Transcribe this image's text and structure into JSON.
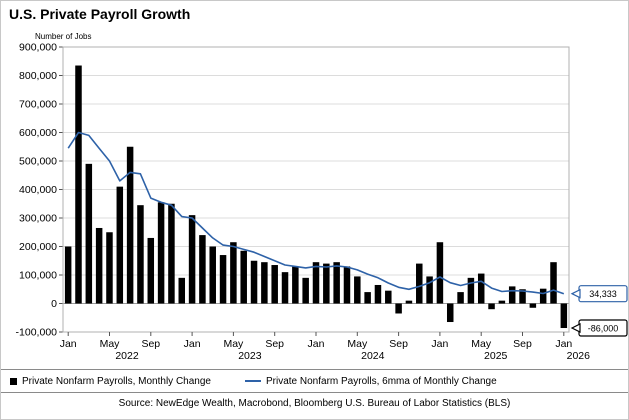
{
  "title": "U.S. Private Payroll Growth",
  "source": "Source: NewEdge Wealth, Macrobond, Bloomberg U.S. Bureau of Labor Statistics (BLS)",
  "colors": {
    "bar": "#000000",
    "line": "#2e62a8",
    "grid": "#dcdcdc",
    "axis": "#8a8a8a"
  },
  "legend": [
    {
      "label": "Private Nonfarm Payrolls, Monthly Change",
      "marker": "square",
      "color": "#000000"
    },
    {
      "label": "Private Nonfarm Payrolls, 6mma of Monthly Change",
      "marker": "line",
      "color": "#2e62a8"
    }
  ],
  "callouts": [
    {
      "text": "34,333",
      "value": 34333,
      "color": "#2e62a8"
    },
    {
      "text": "-86,000",
      "value": -86000,
      "color": "#000000"
    }
  ],
  "chart_data": {
    "type": "bar",
    "title": "U.S. Private Payroll Growth",
    "ylabel": "Number of Jobs",
    "xlabel": "",
    "ylim": [
      -100000,
      900000
    ],
    "ytick_step": 100000,
    "grid": true,
    "legend_position": "bottom",
    "categories": [
      "2022-01",
      "2022-02",
      "2022-03",
      "2022-04",
      "2022-05",
      "2022-06",
      "2022-07",
      "2022-08",
      "2022-09",
      "2022-10",
      "2022-11",
      "2022-12",
      "2023-01",
      "2023-02",
      "2023-03",
      "2023-04",
      "2023-05",
      "2023-06",
      "2023-07",
      "2023-08",
      "2023-09",
      "2023-10",
      "2023-11",
      "2023-12",
      "2024-01",
      "2024-02",
      "2024-03",
      "2024-04",
      "2024-05",
      "2024-06",
      "2024-07",
      "2024-08",
      "2024-09",
      "2024-10",
      "2024-11",
      "2024-12",
      "2025-01",
      "2025-02",
      "2025-03",
      "2025-04",
      "2025-05",
      "2025-06",
      "2025-07",
      "2025-08",
      "2025-09",
      "2025-10",
      "2025-11",
      "2025-12",
      "2026-01"
    ],
    "series": [
      {
        "name": "Private Nonfarm Payrolls, Monthly Change",
        "type": "bar",
        "color": "#000000",
        "values": [
          200000,
          835000,
          490000,
          265000,
          250000,
          410000,
          550000,
          345000,
          230000,
          355000,
          350000,
          90000,
          310000,
          240000,
          200000,
          170000,
          215000,
          185000,
          150000,
          145000,
          135000,
          110000,
          130000,
          90000,
          145000,
          140000,
          145000,
          130000,
          95000,
          40000,
          65000,
          45000,
          -35000,
          10000,
          140000,
          95000,
          215000,
          -65000,
          40000,
          90000,
          105000,
          -20000,
          10000,
          60000,
          50000,
          -15000,
          52000,
          145000,
          -86000
        ]
      },
      {
        "name": "Private Nonfarm Payrolls, 6mma of Monthly Change",
        "type": "line",
        "color": "#2e62a8",
        "values": [
          545000,
          600000,
          590000,
          545000,
          500000,
          430000,
          460000,
          455000,
          370000,
          355000,
          345000,
          305000,
          300000,
          265000,
          230000,
          205000,
          200000,
          190000,
          180000,
          165000,
          150000,
          135000,
          130000,
          125000,
          130000,
          128000,
          132000,
          128000,
          118000,
          103000,
          90000,
          72000,
          57000,
          50000,
          60000,
          73000,
          93000,
          73000,
          63000,
          72000,
          78000,
          54000,
          42000,
          45000,
          44000,
          40000,
          35000,
          47000,
          34333
        ]
      }
    ],
    "x_ticks": [
      {
        "index": 0,
        "label": "Jan"
      },
      {
        "index": 4,
        "label": "May"
      },
      {
        "index": 8,
        "label": "Sep"
      },
      {
        "index": 12,
        "label": "Jan"
      },
      {
        "index": 16,
        "label": "May"
      },
      {
        "index": 20,
        "label": "Sep"
      },
      {
        "index": 24,
        "label": "Jan"
      },
      {
        "index": 28,
        "label": "May"
      },
      {
        "index": 32,
        "label": "Sep"
      },
      {
        "index": 36,
        "label": "Jan"
      },
      {
        "index": 40,
        "label": "May"
      },
      {
        "index": 44,
        "label": "Sep"
      },
      {
        "index": 48,
        "label": "Jan"
      }
    ],
    "year_labels": [
      {
        "pos": 5.7,
        "label": "2022"
      },
      {
        "pos": 17.6,
        "label": "2023"
      },
      {
        "pos": 29.5,
        "label": "2024"
      },
      {
        "pos": 41.4,
        "label": "2025"
      },
      {
        "pos": 49.4,
        "label": "2026"
      }
    ]
  }
}
